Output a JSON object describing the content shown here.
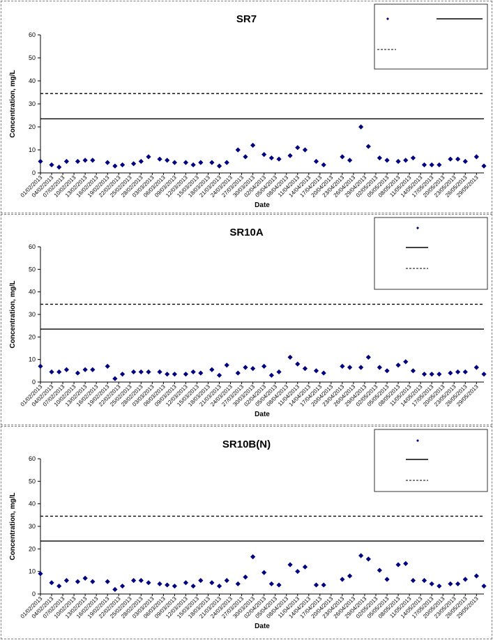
{
  "colors": {
    "marker": "#000080",
    "line": "#000000",
    "grid": "#000000"
  },
  "chart_data": [
    {
      "type": "scatter",
      "title": "SR7",
      "xlabel": "Date",
      "ylabel": "Concentration, mg/L",
      "ylim": [
        0,
        60
      ],
      "yticks": [
        0,
        10,
        20,
        30,
        40,
        50,
        60
      ],
      "x_start": "2013-02-01",
      "x_end": "2013-05-31",
      "x_tick_labels": [
        "01/02/2013",
        "04/02/2013",
        "07/02/2013",
        "10/02/2013",
        "13/02/2013",
        "16/02/2013",
        "19/02/2013",
        "22/02/2013",
        "25/02/2013",
        "28/02/2013",
        "03/03/2013",
        "06/03/2013",
        "09/03/2013",
        "12/03/2013",
        "15/03/2013",
        "18/03/2013",
        "21/03/2013",
        "24/03/2013",
        "27/03/2013",
        "30/03/2013",
        "02/04/2013",
        "05/04/2013",
        "08/04/2013",
        "11/04/2013",
        "14/04/2013",
        "17/04/2013",
        "20/04/2013",
        "23/04/2013",
        "26/04/2013",
        "29/04/2013",
        "02/05/2013",
        "05/05/2013",
        "08/05/2013",
        "11/05/2013",
        "14/05/2013",
        "17/05/2013",
        "20/05/2013",
        "23/05/2013",
        "26/05/2013",
        "29/05/2013"
      ],
      "legend_placement": "top-right",
      "series": [
        {
          "kind": "markers",
          "x": [
            "2013-02-01",
            "2013-02-04",
            "2013-02-06",
            "2013-02-08",
            "2013-02-11",
            "2013-02-13",
            "2013-02-15",
            "2013-02-19",
            "2013-02-21",
            "2013-02-23",
            "2013-02-26",
            "2013-02-28",
            "2013-03-02",
            "2013-03-05",
            "2013-03-07",
            "2013-03-09",
            "2013-03-12",
            "2013-03-14",
            "2013-03-16",
            "2013-03-19",
            "2013-03-21",
            "2013-03-23",
            "2013-03-26",
            "2013-03-28",
            "2013-03-30",
            "2013-04-02",
            "2013-04-04",
            "2013-04-06",
            "2013-04-09",
            "2013-04-11",
            "2013-04-13",
            "2013-04-16",
            "2013-04-18",
            "2013-04-23",
            "2013-04-25",
            "2013-04-28",
            "2013-04-30",
            "2013-05-03",
            "2013-05-05",
            "2013-05-08",
            "2013-05-10",
            "2013-05-12",
            "2013-05-15",
            "2013-05-17",
            "2013-05-19",
            "2013-05-22",
            "2013-05-24",
            "2013-05-26",
            "2013-05-29",
            "2013-05-31",
            "2013-06-02"
          ],
          "y": [
            5,
            3.5,
            2.5,
            5,
            5,
            5.5,
            5.5,
            4.5,
            3,
            3.5,
            4,
            5,
            7,
            6,
            5.5,
            4.5,
            4.5,
            3.5,
            4.5,
            4.5,
            3,
            4.5,
            10,
            7,
            12,
            8,
            6.5,
            6,
            7.5,
            11,
            10,
            5,
            3.5,
            7,
            5.5,
            20,
            11.5,
            6.5,
            5.5,
            5,
            5.5,
            6.5,
            3.5,
            3.5,
            3.5,
            6,
            6,
            5,
            7,
            3,
            2.5
          ]
        },
        {
          "kind": "hline",
          "y": 23.5,
          "style": "solid"
        },
        {
          "kind": "hline",
          "y": 34.5,
          "style": "dashed"
        }
      ]
    },
    {
      "type": "scatter",
      "title": "SR10A",
      "xlabel": "Date",
      "ylabel": "Concentration, mg/L",
      "ylim": [
        0,
        60
      ],
      "yticks": [
        0,
        10,
        20,
        30,
        40,
        50,
        60
      ],
      "x_start": "2013-02-01",
      "x_end": "2013-05-31",
      "x_tick_labels": [
        "01/02/2013",
        "04/02/2013",
        "07/02/2013",
        "10/02/2013",
        "13/02/2013",
        "16/02/2013",
        "19/02/2013",
        "22/02/2013",
        "25/02/2013",
        "28/02/2013",
        "03/03/2013",
        "06/03/2013",
        "09/03/2013",
        "12/03/2013",
        "15/03/2013",
        "18/03/2013",
        "21/03/2013",
        "24/03/2013",
        "27/03/2013",
        "30/03/2013",
        "02/04/2013",
        "05/04/2013",
        "08/04/2013",
        "11/04/2013",
        "14/04/2013",
        "17/04/2013",
        "20/04/2013",
        "23/04/2013",
        "26/04/2013",
        "29/04/2013",
        "02/05/2013",
        "05/05/2013",
        "08/05/2013",
        "11/05/2013",
        "14/05/2013",
        "17/05/2013",
        "20/05/2013",
        "23/05/2013",
        "26/05/2013",
        "29/05/2013"
      ],
      "legend_placement": "top-right",
      "series": [
        {
          "kind": "markers",
          "x": [
            "2013-02-01",
            "2013-02-04",
            "2013-02-06",
            "2013-02-08",
            "2013-02-11",
            "2013-02-13",
            "2013-02-15",
            "2013-02-19",
            "2013-02-21",
            "2013-02-23",
            "2013-02-26",
            "2013-02-28",
            "2013-03-02",
            "2013-03-05",
            "2013-03-07",
            "2013-03-09",
            "2013-03-12",
            "2013-03-14",
            "2013-03-16",
            "2013-03-19",
            "2013-03-21",
            "2013-03-23",
            "2013-03-26",
            "2013-03-28",
            "2013-03-30",
            "2013-04-02",
            "2013-04-04",
            "2013-04-06",
            "2013-04-09",
            "2013-04-11",
            "2013-04-13",
            "2013-04-16",
            "2013-04-18",
            "2013-04-23",
            "2013-04-25",
            "2013-04-28",
            "2013-04-30",
            "2013-05-03",
            "2013-05-05",
            "2013-05-08",
            "2013-05-10",
            "2013-05-12",
            "2013-05-15",
            "2013-05-17",
            "2013-05-19",
            "2013-05-22",
            "2013-05-24",
            "2013-05-26",
            "2013-05-29",
            "2013-05-31",
            "2013-06-02"
          ],
          "y": [
            7,
            4.5,
            4.5,
            5.5,
            4,
            5.5,
            5.5,
            7,
            1.5,
            3.5,
            4.5,
            4.5,
            4.5,
            4.5,
            3.5,
            3.5,
            3.5,
            4.5,
            4,
            5.5,
            3,
            7.5,
            4,
            6.5,
            6,
            7,
            3,
            4.5,
            11,
            8,
            6,
            5,
            4,
            7,
            6.5,
            6.5,
            11,
            6.5,
            5,
            7.5,
            9,
            5,
            3.5,
            3.5,
            3.5,
            4,
            4.5,
            4.5,
            6.5,
            3.5,
            3
          ]
        },
        {
          "kind": "hline",
          "y": 23.5,
          "style": "solid"
        },
        {
          "kind": "hline",
          "y": 34.5,
          "style": "dashed"
        }
      ]
    },
    {
      "type": "scatter",
      "title": "SR10B(N)",
      "xlabel": "Date",
      "ylabel": "Concentration, mg/L",
      "ylim": [
        0,
        60
      ],
      "yticks": [
        0,
        10,
        20,
        30,
        40,
        50,
        60
      ],
      "x_start": "2013-02-01",
      "x_end": "2013-05-31",
      "x_tick_labels": [
        "01/02/2013",
        "04/02/2013",
        "07/02/2013",
        "10/02/2013",
        "13/02/2013",
        "16/02/2013",
        "19/02/2013",
        "22/02/2013",
        "25/02/2013",
        "28/02/2013",
        "03/03/2013",
        "06/03/2013",
        "09/03/2013",
        "12/03/2013",
        "15/03/2013",
        "18/03/2013",
        "21/03/2013",
        "24/03/2013",
        "27/03/2013",
        "30/03/2013",
        "02/04/2013",
        "05/04/2013",
        "08/04/2013",
        "11/04/2013",
        "14/04/2013",
        "17/04/2013",
        "20/04/2013",
        "23/04/2013",
        "26/04/2013",
        "29/04/2013",
        "02/05/2013",
        "05/05/2013",
        "08/05/2013",
        "11/05/2013",
        "14/05/2013",
        "17/05/2013",
        "20/05/2013",
        "23/05/2013",
        "26/05/2013",
        "29/05/2013"
      ],
      "legend_placement": "top-right",
      "series": [
        {
          "kind": "markers",
          "x": [
            "2013-02-01",
            "2013-02-04",
            "2013-02-06",
            "2013-02-08",
            "2013-02-11",
            "2013-02-13",
            "2013-02-15",
            "2013-02-19",
            "2013-02-21",
            "2013-02-23",
            "2013-02-26",
            "2013-02-28",
            "2013-03-02",
            "2013-03-05",
            "2013-03-07",
            "2013-03-09",
            "2013-03-12",
            "2013-03-14",
            "2013-03-16",
            "2013-03-19",
            "2013-03-21",
            "2013-03-23",
            "2013-03-26",
            "2013-03-28",
            "2013-03-30",
            "2013-04-02",
            "2013-04-04",
            "2013-04-06",
            "2013-04-09",
            "2013-04-11",
            "2013-04-13",
            "2013-04-16",
            "2013-04-18",
            "2013-04-23",
            "2013-04-25",
            "2013-04-28",
            "2013-04-30",
            "2013-05-03",
            "2013-05-05",
            "2013-05-08",
            "2013-05-10",
            "2013-05-12",
            "2013-05-15",
            "2013-05-17",
            "2013-05-19",
            "2013-05-22",
            "2013-05-24",
            "2013-05-26",
            "2013-05-29",
            "2013-05-31",
            "2013-06-02"
          ],
          "y": [
            9,
            5,
            3.5,
            6,
            5.5,
            7,
            5.5,
            5.5,
            2,
            3.5,
            6,
            6,
            5,
            4.5,
            4,
            3.5,
            5,
            3.5,
            6,
            5,
            3.5,
            6,
            4.5,
            7.5,
            16.5,
            9.5,
            4.5,
            4,
            13,
            10,
            12,
            4,
            4,
            6.5,
            8,
            17,
            15.5,
            10.5,
            6.5,
            13,
            13.5,
            6,
            6,
            4.5,
            3.5,
            4.5,
            4.5,
            6.5,
            8,
            3.5,
            3.5
          ]
        },
        {
          "kind": "hline",
          "y": 23.5,
          "style": "solid"
        },
        {
          "kind": "hline",
          "y": 34.5,
          "style": "dashed"
        }
      ]
    }
  ]
}
